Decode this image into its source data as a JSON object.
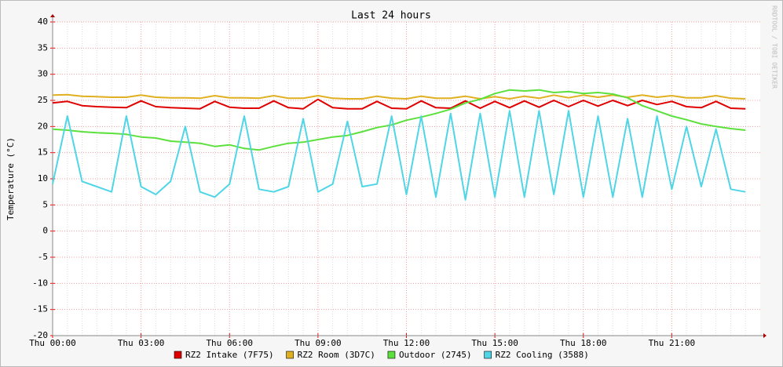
{
  "chart_data": {
    "type": "line",
    "title": "Last 24 hours",
    "y_label": "Temperature (°C)",
    "watermark": "RRDTOOL / TOBI OETIKER",
    "categories": [
      "Thu 00:00",
      null,
      null,
      null,
      null,
      null,
      "Thu 03:00",
      null,
      null,
      null,
      null,
      null,
      "Thu 06:00",
      null,
      null,
      null,
      null,
      null,
      "Thu 09:00",
      null,
      null,
      null,
      null,
      null,
      "Thu 12:00",
      null,
      null,
      null,
      null,
      null,
      "Thu 15:00",
      null,
      null,
      null,
      null,
      null,
      "Thu 18:00",
      null,
      null,
      null,
      null,
      null,
      "Thu 21:00",
      null,
      null,
      null,
      null,
      null
    ],
    "ylim": [
      -20,
      40
    ],
    "yticks": [
      -20,
      -15,
      -10,
      -5,
      0,
      5,
      10,
      15,
      20,
      25,
      30,
      35,
      40
    ],
    "grid": true,
    "series": [
      {
        "name": "RZ2 Intake (7F75)",
        "color": "#e00000",
        "values": [
          24.5,
          24.8,
          24,
          23.8,
          23.7,
          23.6,
          24.9,
          23.8,
          23.6,
          23.5,
          23.4,
          24.8,
          23.7,
          23.5,
          23.5,
          24.9,
          23.6,
          23.4,
          25.2,
          23.6,
          23.4,
          23.4,
          24.8,
          23.5,
          23.4,
          24.9,
          23.6,
          23.5,
          24.9,
          23.5,
          24.8,
          23.6,
          24.9,
          23.7,
          25,
          23.8,
          25,
          23.9,
          25,
          24,
          25,
          24.2,
          24.8,
          23.8,
          23.6,
          24.8,
          23.5,
          23.4
        ]
      },
      {
        "name": "RZ2 Room (3D7C)",
        "color": "#e0b020",
        "values": [
          26,
          26.1,
          25.8,
          25.7,
          25.6,
          25.6,
          26,
          25.6,
          25.5,
          25.5,
          25.4,
          25.9,
          25.5,
          25.5,
          25.4,
          25.9,
          25.4,
          25.4,
          25.9,
          25.4,
          25.3,
          25.3,
          25.8,
          25.4,
          25.3,
          25.8,
          25.4,
          25.4,
          25.8,
          25.3,
          25.7,
          25.3,
          25.8,
          25.4,
          26,
          25.5,
          26,
          25.6,
          26,
          25.6,
          26,
          25.6,
          25.9,
          25.5,
          25.5,
          25.9,
          25.4,
          25.3
        ]
      },
      {
        "name": "Outdoor (2745)",
        "color": "#5ce03c",
        "values": [
          19.5,
          19.3,
          19,
          18.8,
          18.7,
          18.5,
          18,
          17.8,
          17.2,
          17,
          16.8,
          16.2,
          16.5,
          15.8,
          15.5,
          16.2,
          16.8,
          17,
          17.5,
          18,
          18.3,
          19,
          19.8,
          20.3,
          21.2,
          21.8,
          22.5,
          23.3,
          24.5,
          25.2,
          26.3,
          27,
          26.8,
          27,
          26.5,
          26.7,
          26.3,
          26.5,
          26.2,
          25.5,
          24,
          23,
          22,
          21.3,
          20.5,
          20,
          19.6,
          19.3
        ]
      },
      {
        "name": "RZ2 Cooling (3588)",
        "color": "#4fd6e6",
        "values": [
          9,
          22,
          9.5,
          8.5,
          7.5,
          22,
          8.5,
          7,
          9.5,
          20,
          7.5,
          6.5,
          9,
          22,
          8,
          7.5,
          8.5,
          21.5,
          7.5,
          9,
          21,
          8.5,
          9,
          22,
          7,
          22,
          6.5,
          22.5,
          6,
          22.5,
          6.5,
          23,
          6.5,
          23,
          7,
          23,
          6.5,
          22,
          6.5,
          21.5,
          6.5,
          22,
          8,
          20,
          8.5,
          19.5,
          8,
          7.5
        ]
      }
    ]
  }
}
